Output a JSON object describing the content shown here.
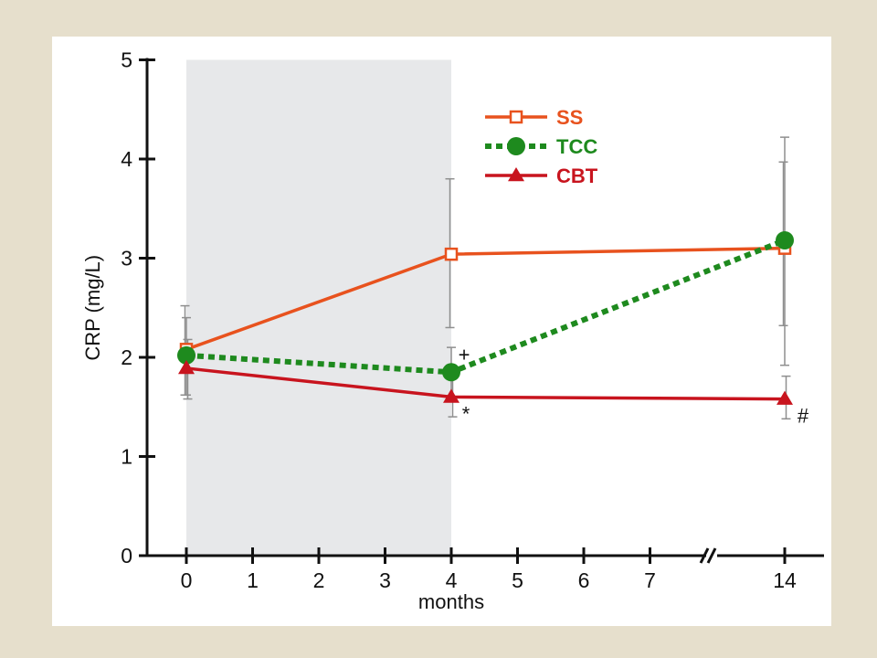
{
  "chart_data": {
    "type": "line",
    "title": "",
    "xlabel": "months",
    "ylabel": "CRP (mg/L)",
    "ylim": [
      0,
      5
    ],
    "x_ticks": [
      "0",
      "1",
      "2",
      "3",
      "4",
      "5",
      "6",
      "7",
      "14"
    ],
    "y_ticks": [
      "0",
      "1",
      "2",
      "3",
      "4",
      "5"
    ],
    "axis_break": "between 7 and 14",
    "shaded_region": [
      0,
      4
    ],
    "grid": false,
    "legend_position": "top-center",
    "x": [
      0,
      4,
      14
    ],
    "series": [
      {
        "name": "SS",
        "color": "#e8521e",
        "marker": "open-square",
        "line": "solid",
        "values": [
          2.08,
          3.04,
          3.1
        ],
        "error_high": [
          2.52,
          3.8,
          3.97
        ],
        "error_low": [
          1.62,
          2.3,
          2.32
        ]
      },
      {
        "name": "TCC",
        "color": "#1e8a1e",
        "marker": "filled-circle",
        "line": "dotted",
        "values": [
          2.02,
          1.85,
          3.18
        ],
        "error_high": [
          2.4,
          2.1,
          4.22
        ],
        "error_low": [
          1.62,
          1.6,
          1.92
        ]
      },
      {
        "name": "CBT",
        "color": "#c8141e",
        "marker": "filled-triangle",
        "line": "solid",
        "values": [
          1.89,
          1.6,
          1.58
        ],
        "error_high": [
          2.18,
          1.8,
          1.81
        ],
        "error_low": [
          1.58,
          1.4,
          1.38
        ]
      }
    ],
    "annotations": [
      {
        "text": "+",
        "x": 4,
        "y": 1.85
      },
      {
        "text": "*",
        "x": 4,
        "y": 1.6
      },
      {
        "text": "#",
        "x": 14,
        "y": 1.58
      }
    ]
  }
}
